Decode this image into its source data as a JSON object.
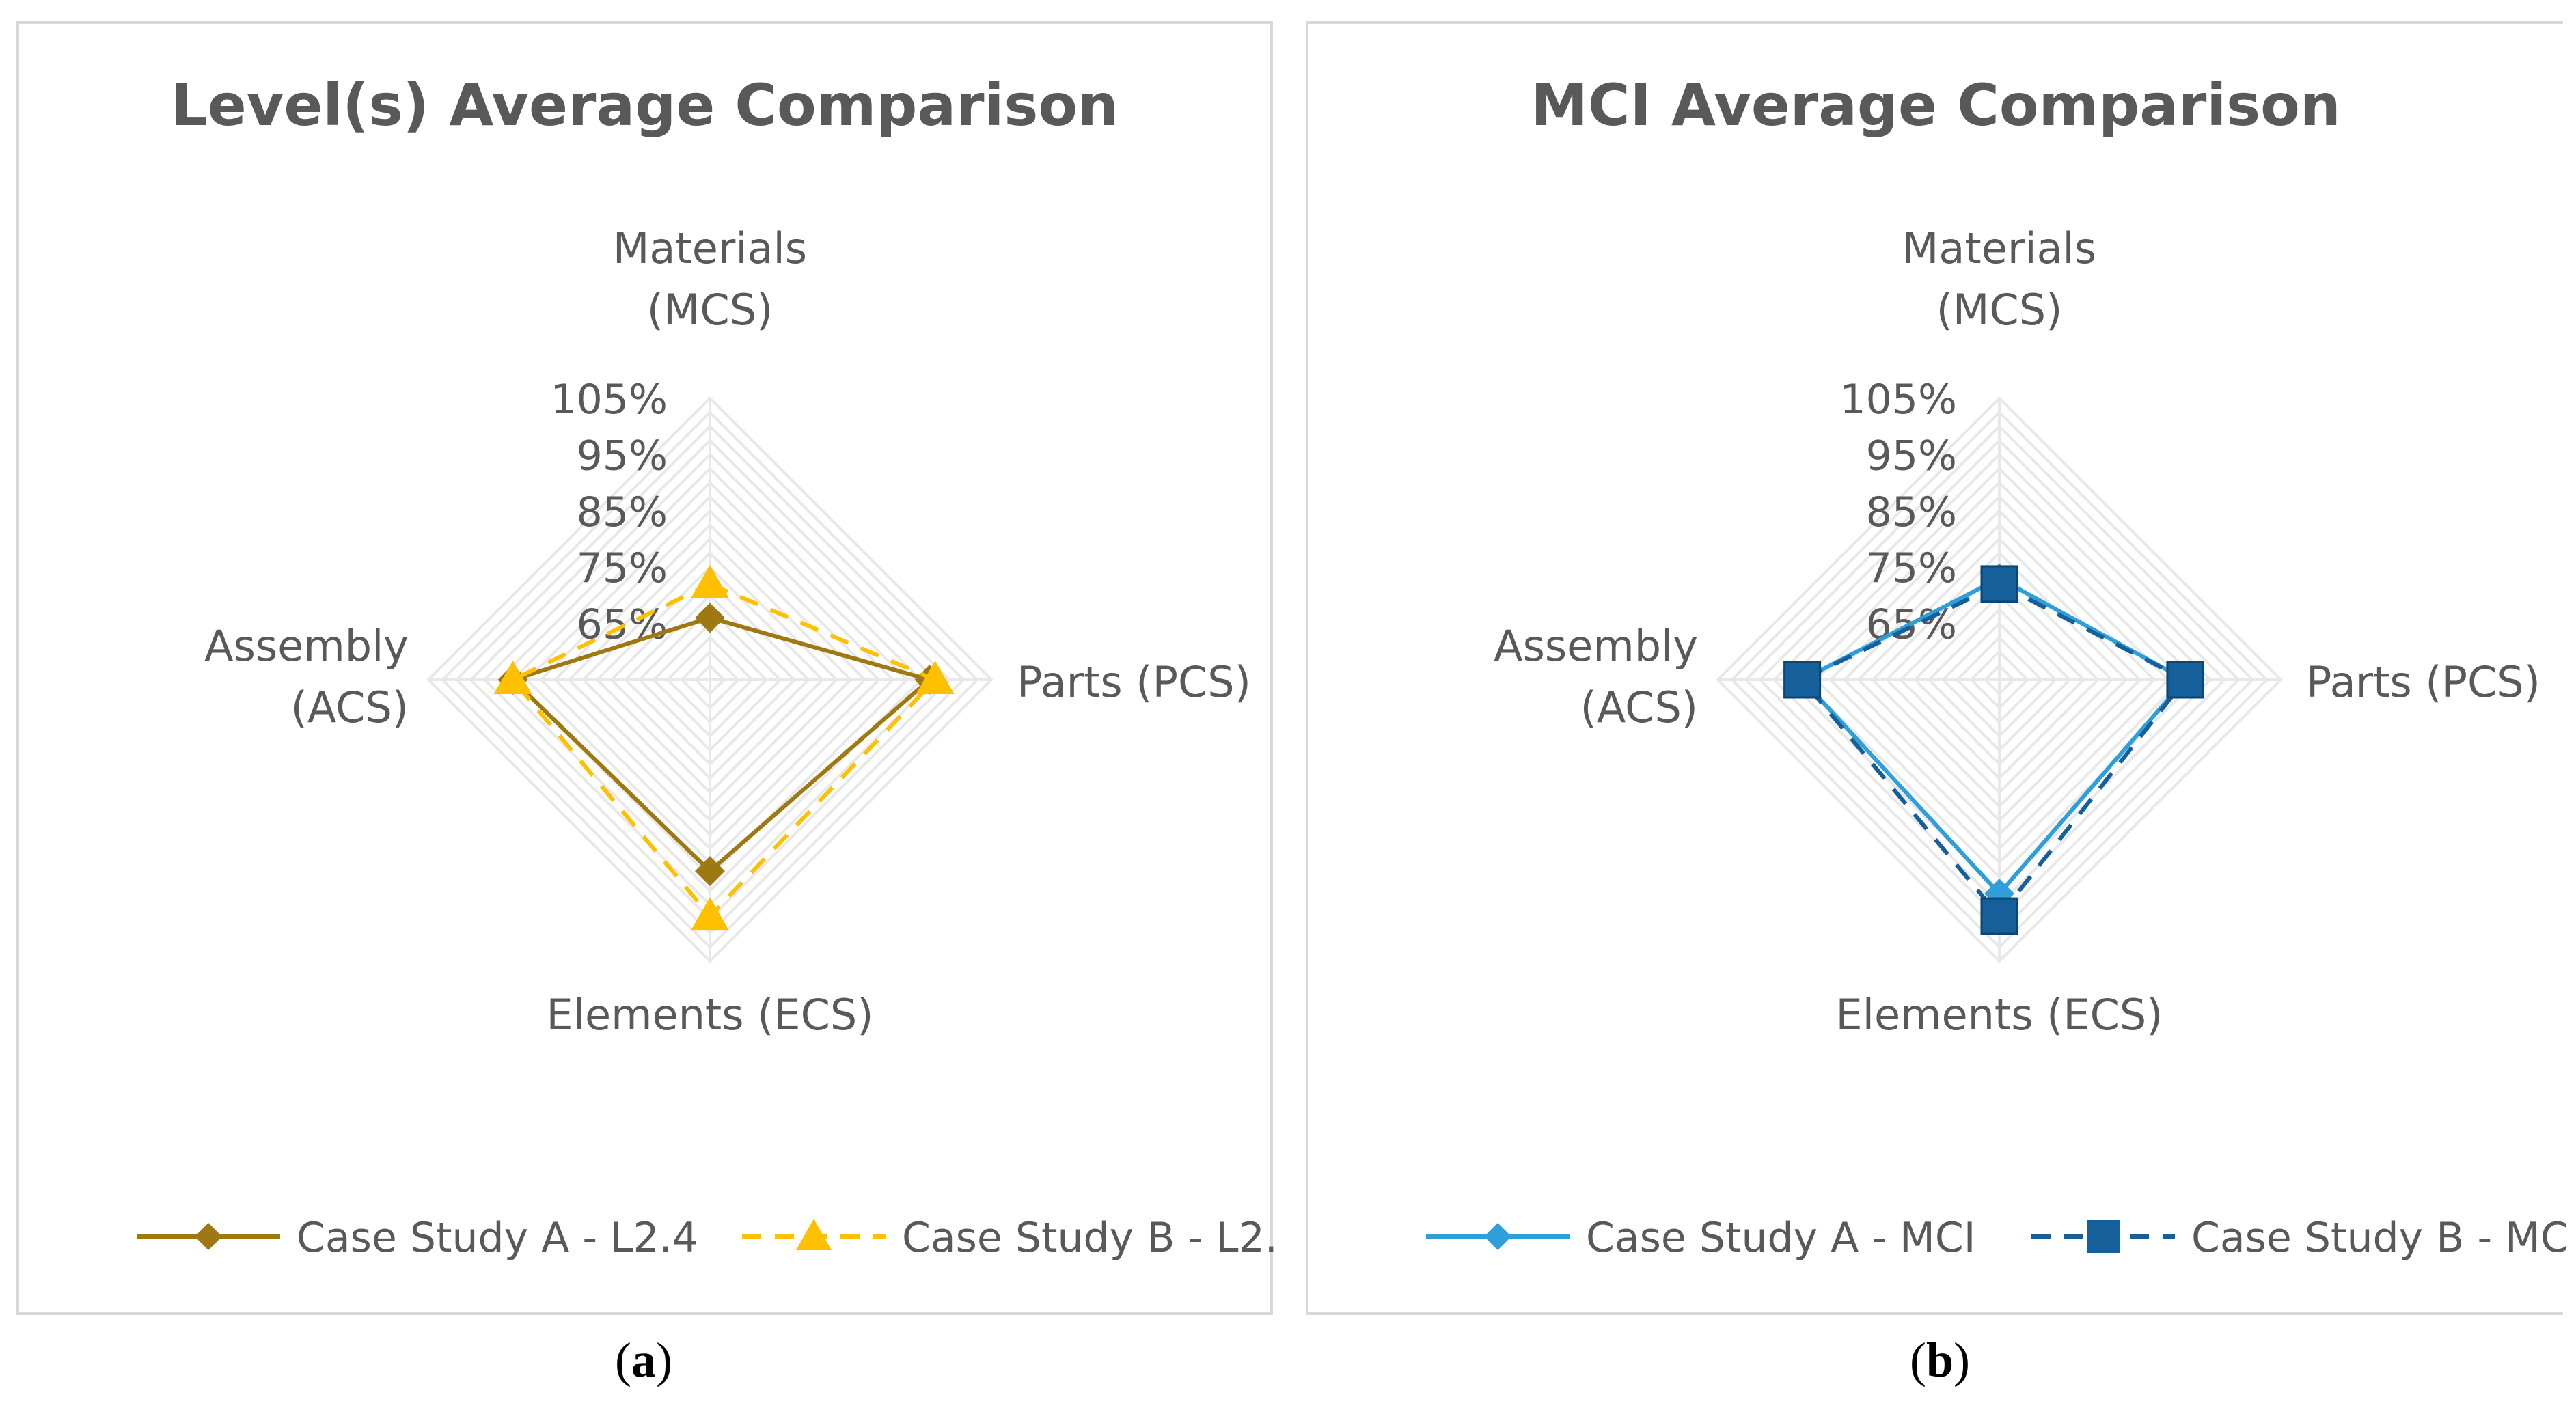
{
  "chart_data": [
    {
      "type": "radar",
      "title": "Level(s) Average Comparison",
      "categories": [
        "Materials (MCS)",
        "Parts (PCS)",
        "Elements (ECS)",
        "Assembly (ACS)"
      ],
      "axis_label_lines": [
        [
          "Materials",
          "(MCS)"
        ],
        [
          "Parts (PCS)"
        ],
        [
          "Elements (ECS)"
        ],
        [
          "Assembly",
          "(ACS)"
        ]
      ],
      "tick_labels": [
        "65%",
        "75%",
        "85%",
        "95%",
        "105%"
      ],
      "rlim": [
        55,
        105
      ],
      "series": [
        {
          "name": "Case Study A - L2.4",
          "values": [
            66,
            94,
            89,
            90
          ],
          "color": "#9e7811",
          "dash": false,
          "marker": "diamond"
        },
        {
          "name": "Case Study B - L2.",
          "values": [
            72,
            95,
            97,
            90
          ],
          "color": "#ffc000",
          "dash": true,
          "marker": "triangle"
        }
      ],
      "caption": "a"
    },
    {
      "type": "radar",
      "title": "MCI Average Comparison",
      "categories": [
        "Materials (MCS)",
        "Parts (PCS)",
        "Elements (ECS)",
        "Assembly (ACS)"
      ],
      "axis_label_lines": [
        [
          "Materials",
          "(MCS)"
        ],
        [
          "Parts (PCS)"
        ],
        [
          "Elements (ECS)"
        ],
        [
          "Assembly",
          "(ACS)"
        ]
      ],
      "tick_labels": [
        "65%",
        "75%",
        "85%",
        "95%",
        "105%"
      ],
      "rlim": [
        55,
        105
      ],
      "series": [
        {
          "name": "Case Study A - MCI",
          "values": [
            73,
            88,
            93,
            90
          ],
          "color": "#2e9fd9",
          "dash": false,
          "marker": "diamond"
        },
        {
          "name": "Case Study B - MC",
          "values": [
            72,
            88,
            97,
            90
          ],
          "color": "#155f9a",
          "dash": true,
          "marker": "square"
        }
      ],
      "caption": "b"
    }
  ]
}
